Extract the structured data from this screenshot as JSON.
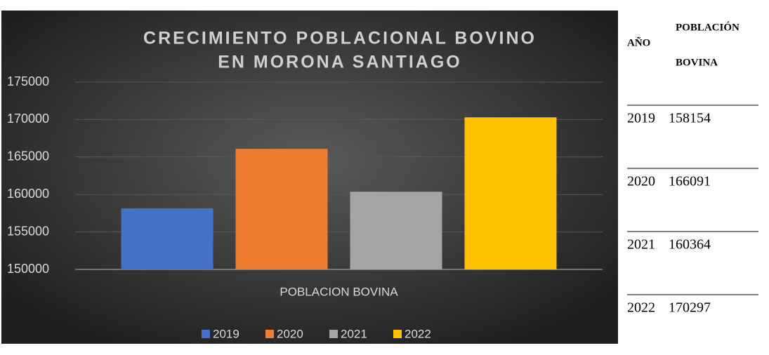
{
  "chart_data": {
    "type": "bar",
    "title": [
      "CRECIMIENTO POBLACIONAL BOVINO",
      "EN MORONA SANTIAGO"
    ],
    "categories": [
      "POBLACION BOVINA"
    ],
    "series": [
      {
        "name": "2019",
        "color": "#4472c4",
        "values": [
          158154
        ]
      },
      {
        "name": "2020",
        "color": "#ed7d31",
        "values": [
          166091
        ]
      },
      {
        "name": "2021",
        "color": "#a5a5a5",
        "values": [
          160364
        ]
      },
      {
        "name": "2022",
        "color": "#ffc000",
        "values": [
          170297
        ]
      }
    ],
    "ylim": [
      150000,
      175000
    ],
    "yticks": [
      150000,
      155000,
      160000,
      165000,
      170000,
      175000
    ],
    "grid": true,
    "legend": "bottom"
  },
  "table": {
    "header": [
      "AÑO",
      [
        "POBLACIÓN",
        "BOVINA"
      ]
    ]
  }
}
